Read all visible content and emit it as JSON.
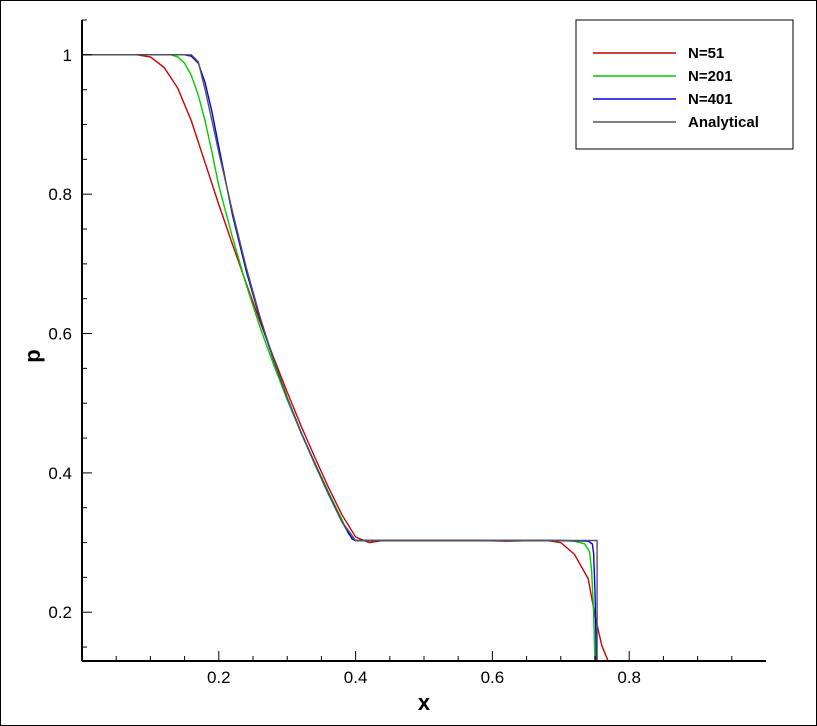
{
  "chart_data": {
    "type": "line",
    "xlabel": "x",
    "ylabel": "p",
    "xlim": [
      0.0,
      1.0
    ],
    "ylim": [
      0.13,
      1.05
    ],
    "xticks": [
      0.2,
      0.4,
      0.6,
      0.8
    ],
    "xtick_labels": [
      "0.2",
      "0.4",
      "0.6",
      "0.8"
    ],
    "yticks": [
      0.2,
      0.4,
      0.6,
      0.8,
      1.0
    ],
    "ytick_labels": [
      "0.2",
      "0.4",
      "0.6",
      "0.8",
      "1"
    ],
    "grid": false,
    "legend_position": "top-right",
    "series": [
      {
        "name": "N=51",
        "color": "#cc0000",
        "points": [
          [
            0.0,
            1.0
          ],
          [
            0.08,
            1.0
          ],
          [
            0.1,
            0.997
          ],
          [
            0.12,
            0.982
          ],
          [
            0.14,
            0.952
          ],
          [
            0.16,
            0.905
          ],
          [
            0.18,
            0.845
          ],
          [
            0.2,
            0.785
          ],
          [
            0.22,
            0.728
          ],
          [
            0.24,
            0.672
          ],
          [
            0.26,
            0.618
          ],
          [
            0.28,
            0.566
          ],
          [
            0.3,
            0.516
          ],
          [
            0.32,
            0.468
          ],
          [
            0.34,
            0.423
          ],
          [
            0.36,
            0.38
          ],
          [
            0.38,
            0.34
          ],
          [
            0.4,
            0.308
          ],
          [
            0.42,
            0.3
          ],
          [
            0.44,
            0.303
          ],
          [
            0.46,
            0.303
          ],
          [
            0.5,
            0.303
          ],
          [
            0.54,
            0.303
          ],
          [
            0.58,
            0.303
          ],
          [
            0.62,
            0.302
          ],
          [
            0.66,
            0.303
          ],
          [
            0.68,
            0.303
          ],
          [
            0.7,
            0.3
          ],
          [
            0.72,
            0.283
          ],
          [
            0.74,
            0.248
          ],
          [
            0.75,
            0.195
          ],
          [
            0.76,
            0.152
          ],
          [
            0.77,
            0.128
          ]
        ]
      },
      {
        "name": "N=201",
        "color": "#00cc00",
        "points": [
          [
            0.0,
            1.0
          ],
          [
            0.13,
            1.0
          ],
          [
            0.14,
            0.997
          ],
          [
            0.15,
            0.988
          ],
          [
            0.16,
            0.97
          ],
          [
            0.17,
            0.942
          ],
          [
            0.18,
            0.905
          ],
          [
            0.19,
            0.86
          ],
          [
            0.2,
            0.812
          ],
          [
            0.22,
            0.738
          ],
          [
            0.24,
            0.67
          ],
          [
            0.26,
            0.61
          ],
          [
            0.28,
            0.556
          ],
          [
            0.3,
            0.505
          ],
          [
            0.32,
            0.458
          ],
          [
            0.34,
            0.415
          ],
          [
            0.36,
            0.373
          ],
          [
            0.38,
            0.333
          ],
          [
            0.39,
            0.312
          ],
          [
            0.4,
            0.303
          ],
          [
            0.42,
            0.303
          ],
          [
            0.5,
            0.303
          ],
          [
            0.6,
            0.303
          ],
          [
            0.7,
            0.303
          ],
          [
            0.72,
            0.302
          ],
          [
            0.735,
            0.298
          ],
          [
            0.742,
            0.287
          ],
          [
            0.745,
            0.26
          ],
          [
            0.748,
            0.2
          ],
          [
            0.75,
            0.128
          ]
        ]
      },
      {
        "name": "N=401",
        "color": "#0000ee",
        "points": [
          [
            0.0,
            1.0
          ],
          [
            0.15,
            1.0
          ],
          [
            0.16,
            0.998
          ],
          [
            0.17,
            0.988
          ],
          [
            0.18,
            0.96
          ],
          [
            0.19,
            0.918
          ],
          [
            0.2,
            0.868
          ],
          [
            0.22,
            0.77
          ],
          [
            0.24,
            0.69
          ],
          [
            0.26,
            0.622
          ],
          [
            0.28,
            0.562
          ],
          [
            0.3,
            0.508
          ],
          [
            0.32,
            0.459
          ],
          [
            0.34,
            0.414
          ],
          [
            0.36,
            0.371
          ],
          [
            0.38,
            0.33
          ],
          [
            0.395,
            0.305
          ],
          [
            0.4,
            0.303
          ],
          [
            0.5,
            0.303
          ],
          [
            0.6,
            0.303
          ],
          [
            0.7,
            0.303
          ],
          [
            0.74,
            0.302
          ],
          [
            0.746,
            0.298
          ],
          [
            0.748,
            0.285
          ],
          [
            0.75,
            0.23
          ],
          [
            0.752,
            0.128
          ]
        ]
      },
      {
        "name": "Analytical",
        "color": "#555555",
        "points": [
          [
            0.0,
            1.0
          ],
          [
            0.16,
            1.0
          ],
          [
            0.17,
            0.99
          ],
          [
            0.18,
            0.95
          ],
          [
            0.19,
            0.905
          ],
          [
            0.2,
            0.86
          ],
          [
            0.22,
            0.775
          ],
          [
            0.24,
            0.695
          ],
          [
            0.26,
            0.625
          ],
          [
            0.28,
            0.563
          ],
          [
            0.3,
            0.508
          ],
          [
            0.32,
            0.458
          ],
          [
            0.34,
            0.413
          ],
          [
            0.36,
            0.37
          ],
          [
            0.38,
            0.33
          ],
          [
            0.4,
            0.303
          ],
          [
            0.5,
            0.303
          ],
          [
            0.6,
            0.303
          ],
          [
            0.7,
            0.303
          ],
          [
            0.753,
            0.303
          ],
          [
            0.753,
            0.128
          ]
        ]
      }
    ]
  }
}
